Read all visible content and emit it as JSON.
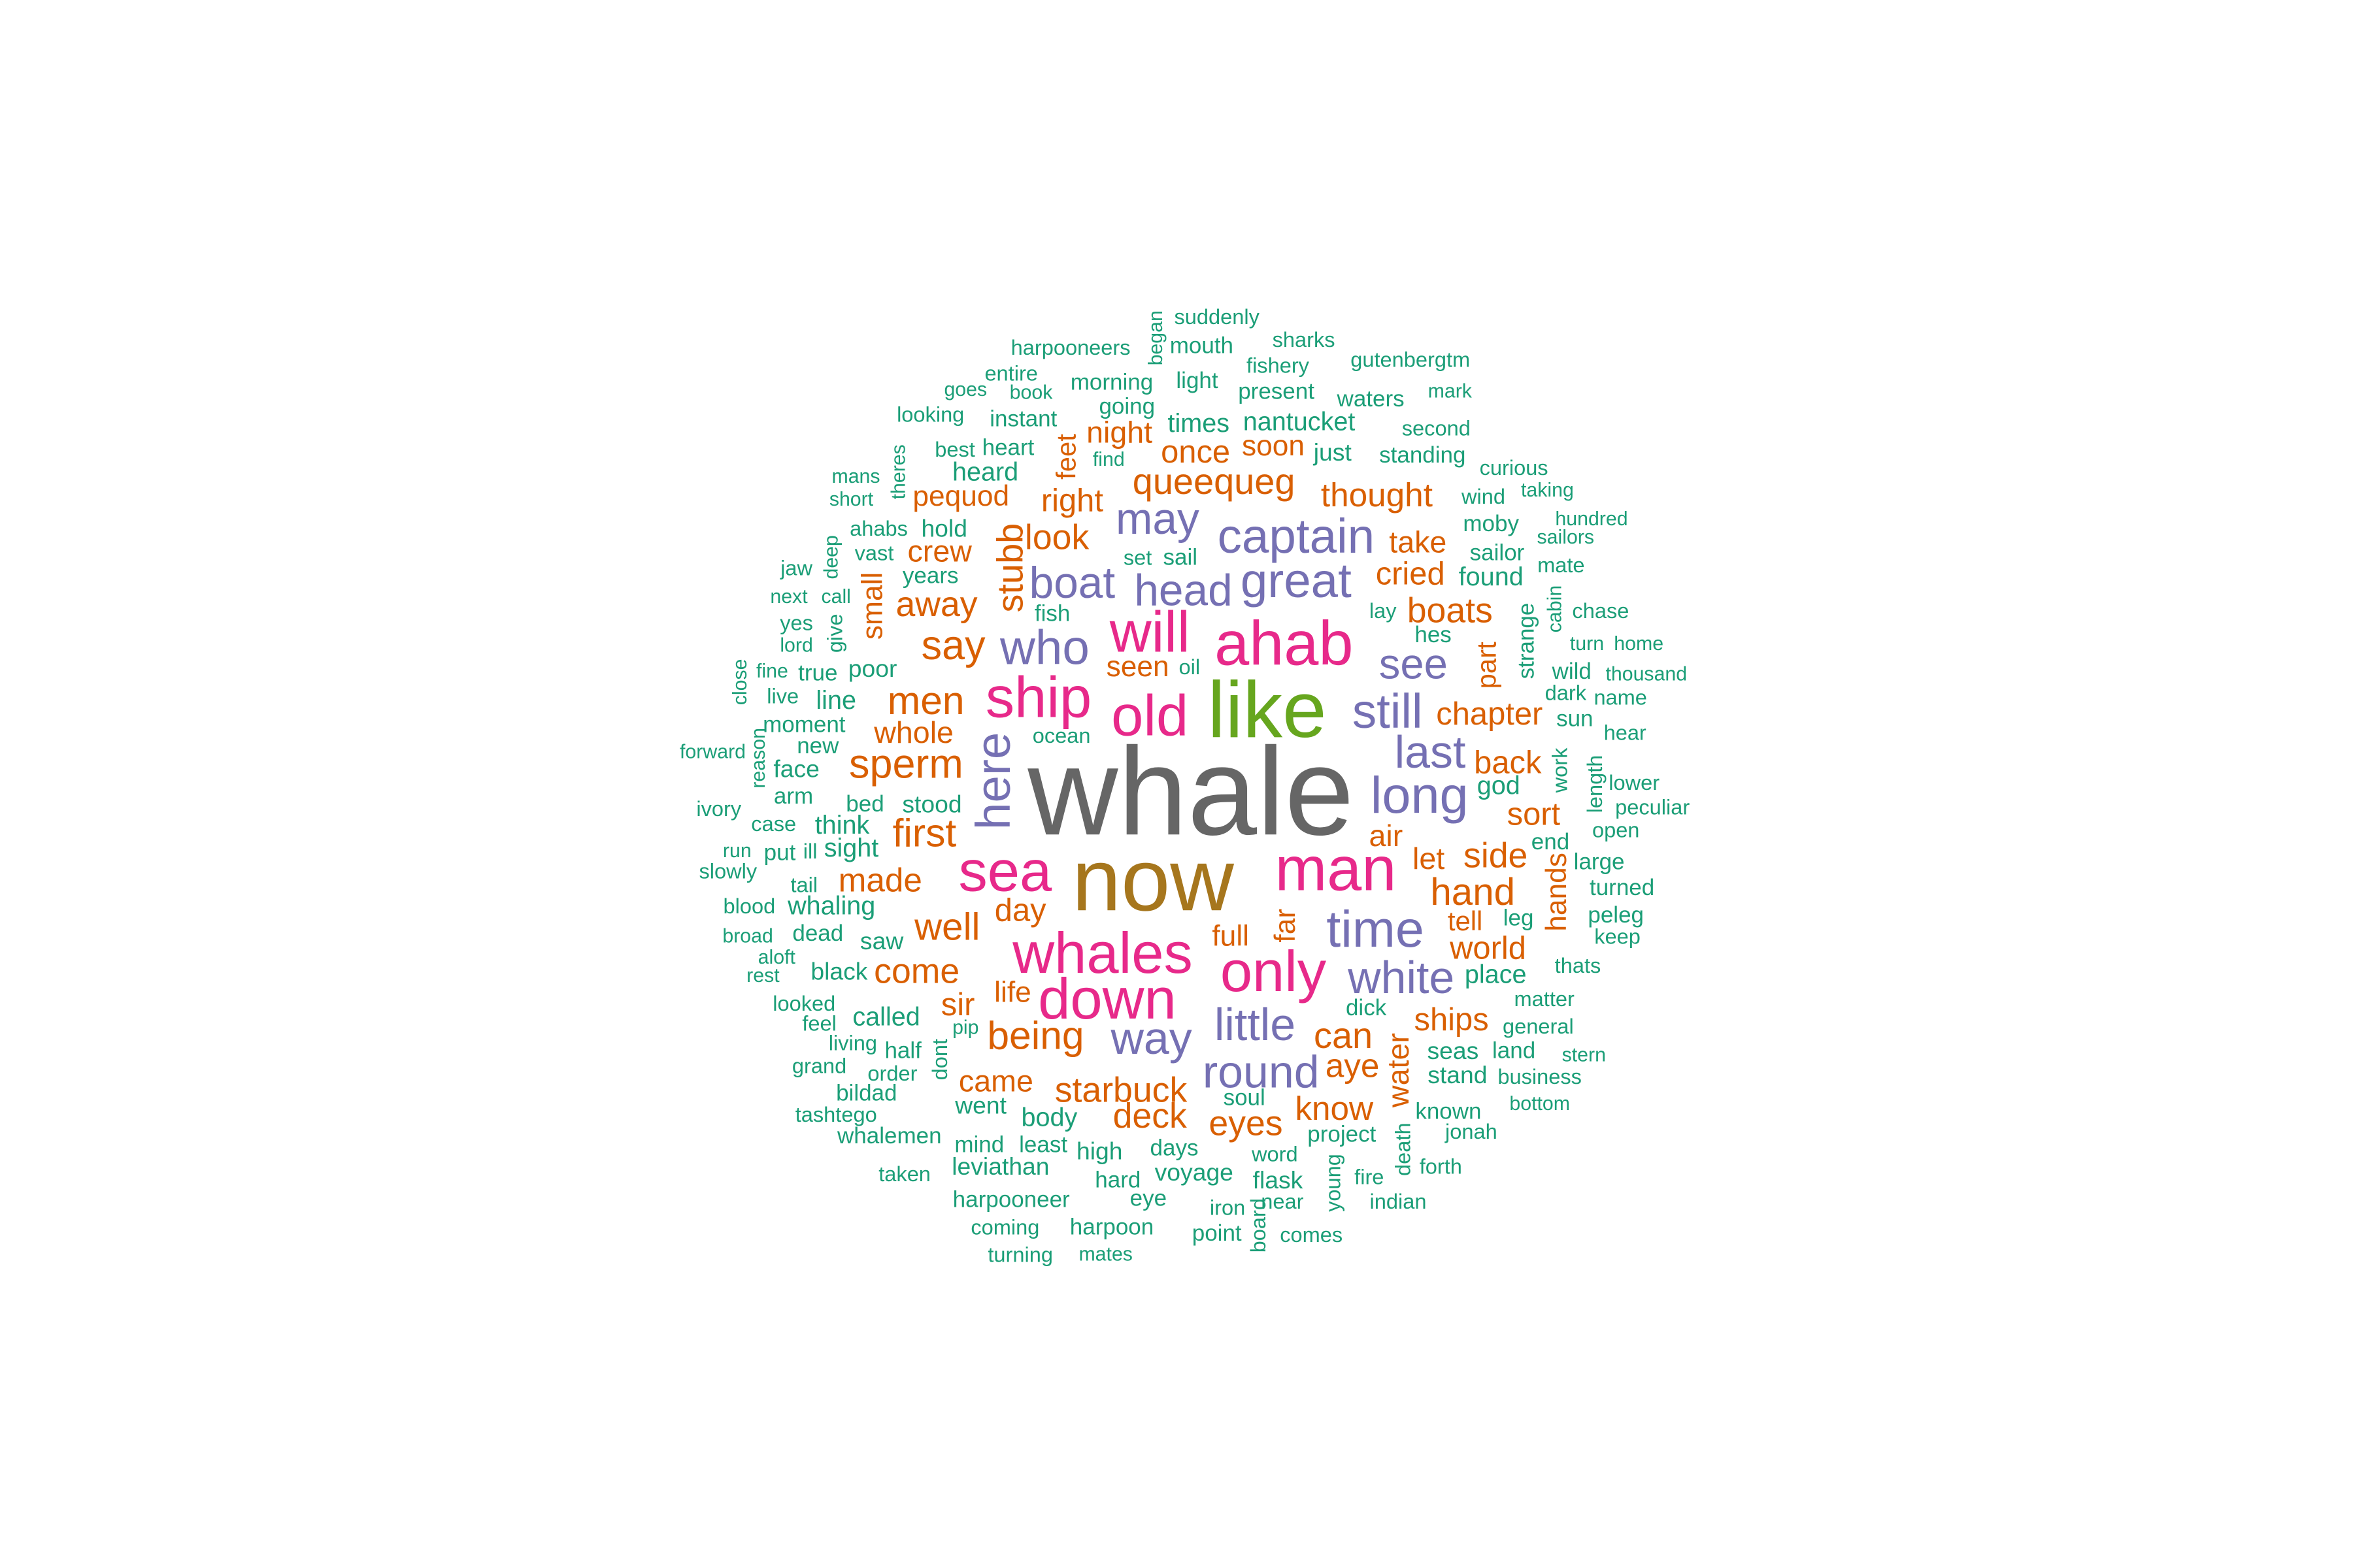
{
  "chart_data": {
    "type": "wordcloud",
    "title": "",
    "colors": {
      "t1": "#1b9e77",
      "t2": "#d95f02",
      "t3": "#7570b3",
      "t4": "#e7298a",
      "t5": "#66a61e",
      "t6": "#a6761d",
      "t7": "#666666"
    },
    "words": [
      {
        "text": "whale",
        "tier": 7
      },
      {
        "text": "now",
        "tier": 6
      },
      {
        "text": "like",
        "tier": 5
      },
      {
        "text": "ahab",
        "tier": 4
      },
      {
        "text": "man",
        "tier": 4
      },
      {
        "text": "ship",
        "tier": 4
      },
      {
        "text": "will",
        "tier": 4
      },
      {
        "text": "old",
        "tier": 4
      },
      {
        "text": "sea",
        "tier": 4
      },
      {
        "text": "whales",
        "tier": 4
      },
      {
        "text": "only",
        "tier": 4
      },
      {
        "text": "down",
        "tier": 4
      },
      {
        "text": "who",
        "tier": 3
      },
      {
        "text": "captain",
        "tier": 3
      },
      {
        "text": "great",
        "tier": 3
      },
      {
        "text": "head",
        "tier": 3
      },
      {
        "text": "boat",
        "tier": 3
      },
      {
        "text": "may",
        "tier": 3
      },
      {
        "text": "see",
        "tier": 3
      },
      {
        "text": "still",
        "tier": 3
      },
      {
        "text": "last",
        "tier": 3
      },
      {
        "text": "long",
        "tier": 3
      },
      {
        "text": "time",
        "tier": 3
      },
      {
        "text": "white",
        "tier": 3
      },
      {
        "text": "little",
        "tier": 3
      },
      {
        "text": "round",
        "tier": 3
      },
      {
        "text": "way",
        "tier": 3
      },
      {
        "text": "here",
        "tier": 3
      },
      {
        "text": "queequeg",
        "tier": 2
      },
      {
        "text": "stubb",
        "tier": 2
      },
      {
        "text": "sperm",
        "tier": 2
      },
      {
        "text": "men",
        "tier": 2
      },
      {
        "text": "say",
        "tier": 2
      },
      {
        "text": "first",
        "tier": 2
      },
      {
        "text": "well",
        "tier": 2
      },
      {
        "text": "made",
        "tier": 2
      },
      {
        "text": "come",
        "tier": 2
      },
      {
        "text": "being",
        "tier": 2
      },
      {
        "text": "starbuck",
        "tier": 2
      },
      {
        "text": "deck",
        "tier": 2
      },
      {
        "text": "eyes",
        "tier": 2
      },
      {
        "text": "know",
        "tier": 2
      },
      {
        "text": "can",
        "tier": 2
      },
      {
        "text": "aye",
        "tier": 2
      },
      {
        "text": "water",
        "tier": 2
      },
      {
        "text": "ships",
        "tier": 2
      },
      {
        "text": "world",
        "tier": 2
      },
      {
        "text": "tell",
        "tier": 2
      },
      {
        "text": "hand",
        "tier": 2
      },
      {
        "text": "side",
        "tier": 2
      },
      {
        "text": "sort",
        "tier": 2
      },
      {
        "text": "back",
        "tier": 2
      },
      {
        "text": "chapter",
        "tier": 2
      },
      {
        "text": "part",
        "tier": 2
      },
      {
        "text": "boats",
        "tier": 2
      },
      {
        "text": "cried",
        "tier": 2
      },
      {
        "text": "take",
        "tier": 2
      },
      {
        "text": "thought",
        "tier": 2
      },
      {
        "text": "soon",
        "tier": 2
      },
      {
        "text": "once",
        "tier": 2
      },
      {
        "text": "night",
        "tier": 2
      },
      {
        "text": "right",
        "tier": 2
      },
      {
        "text": "look",
        "tier": 2
      },
      {
        "text": "pequod",
        "tier": 2
      },
      {
        "text": "crew",
        "tier": 2
      },
      {
        "text": "away",
        "tier": 2
      },
      {
        "text": "small",
        "tier": 2
      },
      {
        "text": "whole",
        "tier": 2
      },
      {
        "text": "seen",
        "tier": 2
      },
      {
        "text": "day",
        "tier": 2
      },
      {
        "text": "life",
        "tier": 2
      },
      {
        "text": "sir",
        "tier": 2
      },
      {
        "text": "came",
        "tier": 2
      },
      {
        "text": "full",
        "tier": 2
      },
      {
        "text": "far",
        "tier": 2
      },
      {
        "text": "air",
        "tier": 2
      },
      {
        "text": "let",
        "tier": 2
      },
      {
        "text": "hands",
        "tier": 2
      },
      {
        "text": "feet",
        "tier": 2
      },
      {
        "text": "ocean",
        "tier": 1
      },
      {
        "text": "fish",
        "tier": 1
      },
      {
        "text": "oil",
        "tier": 1
      },
      {
        "text": "lay",
        "tier": 1
      },
      {
        "text": "hes",
        "tier": 1
      },
      {
        "text": "sail",
        "tier": 1
      },
      {
        "text": "set",
        "tier": 1
      },
      {
        "text": "years",
        "tier": 1
      },
      {
        "text": "hold",
        "tier": 1
      },
      {
        "text": "ahabs",
        "tier": 1
      },
      {
        "text": "heard",
        "tier": 1
      },
      {
        "text": "heart",
        "tier": 1
      },
      {
        "text": "best",
        "tier": 1
      },
      {
        "text": "find",
        "tier": 1
      },
      {
        "text": "instant",
        "tier": 1
      },
      {
        "text": "going",
        "tier": 1
      },
      {
        "text": "times",
        "tier": 1
      },
      {
        "text": "nantucket",
        "tier": 1
      },
      {
        "text": "just",
        "tier": 1
      },
      {
        "text": "standing",
        "tier": 1
      },
      {
        "text": "moby",
        "tier": 1
      },
      {
        "text": "sailor",
        "tier": 1
      },
      {
        "text": "found",
        "tier": 1
      },
      {
        "text": "strange",
        "tier": 1
      },
      {
        "text": "wild",
        "tier": 1
      },
      {
        "text": "sun",
        "tier": 1
      },
      {
        "text": "god",
        "tier": 1
      },
      {
        "text": "work",
        "tier": 1
      },
      {
        "text": "end",
        "tier": 1
      },
      {
        "text": "leg",
        "tier": 1
      },
      {
        "text": "place",
        "tier": 1
      },
      {
        "text": "matter",
        "tier": 1
      },
      {
        "text": "land",
        "tier": 1
      },
      {
        "text": "seas",
        "tier": 1
      },
      {
        "text": "stand",
        "tier": 1
      },
      {
        "text": "business",
        "tier": 1
      },
      {
        "text": "known",
        "tier": 1
      },
      {
        "text": "jonah",
        "tier": 1
      },
      {
        "text": "general",
        "tier": 1
      },
      {
        "text": "dick",
        "tier": 1
      },
      {
        "text": "project",
        "tier": 1
      },
      {
        "text": "soul",
        "tier": 1
      },
      {
        "text": "days",
        "tier": 1
      },
      {
        "text": "voyage",
        "tier": 1
      },
      {
        "text": "flask",
        "tier": 1
      },
      {
        "text": "word",
        "tier": 1
      },
      {
        "text": "body",
        "tier": 1
      },
      {
        "text": "mind",
        "tier": 1
      },
      {
        "text": "least",
        "tier": 1
      },
      {
        "text": "high",
        "tier": 1
      },
      {
        "text": "went",
        "tier": 1
      },
      {
        "text": "leviathan",
        "tier": 1
      },
      {
        "text": "hard",
        "tier": 1
      },
      {
        "text": "eye",
        "tier": 1
      },
      {
        "text": "harpooneer",
        "tier": 1
      },
      {
        "text": "harpoon",
        "tier": 1
      },
      {
        "text": "coming",
        "tier": 1
      },
      {
        "text": "turning",
        "tier": 1
      },
      {
        "text": "mates",
        "tier": 1
      },
      {
        "text": "point",
        "tier": 1
      },
      {
        "text": "iron",
        "tier": 1
      },
      {
        "text": "near",
        "tier": 1
      },
      {
        "text": "comes",
        "tier": 1
      },
      {
        "text": "board",
        "tier": 1
      },
      {
        "text": "young",
        "tier": 1
      },
      {
        "text": "death",
        "tier": 1
      },
      {
        "text": "fire",
        "tier": 1
      },
      {
        "text": "indian",
        "tier": 1
      },
      {
        "text": "forth",
        "tier": 1
      },
      {
        "text": "bottom",
        "tier": 1
      },
      {
        "text": "stern",
        "tier": 1
      },
      {
        "text": "thats",
        "tier": 1
      },
      {
        "text": "keep",
        "tier": 1
      },
      {
        "text": "peleg",
        "tier": 1
      },
      {
        "text": "turned",
        "tier": 1
      },
      {
        "text": "large",
        "tier": 1
      },
      {
        "text": "open",
        "tier": 1
      },
      {
        "text": "peculiar",
        "tier": 1
      },
      {
        "text": "lower",
        "tier": 1
      },
      {
        "text": "length",
        "tier": 1
      },
      {
        "text": "hear",
        "tier": 1
      },
      {
        "text": "name",
        "tier": 1
      },
      {
        "text": "dark",
        "tier": 1
      },
      {
        "text": "thousand",
        "tier": 1
      },
      {
        "text": "turn",
        "tier": 1
      },
      {
        "text": "home",
        "tier": 1
      },
      {
        "text": "chase",
        "tier": 1
      },
      {
        "text": "cabin",
        "tier": 1
      },
      {
        "text": "mate",
        "tier": 1
      },
      {
        "text": "sailors",
        "tier": 1
      },
      {
        "text": "hundred",
        "tier": 1
      },
      {
        "text": "taking",
        "tier": 1
      },
      {
        "text": "curious",
        "tier": 1
      },
      {
        "text": "wind",
        "tier": 1
      },
      {
        "text": "second",
        "tier": 1
      },
      {
        "text": "mark",
        "tier": 1
      },
      {
        "text": "gutenbergtm",
        "tier": 1
      },
      {
        "text": "waters",
        "tier": 1
      },
      {
        "text": "sharks",
        "tier": 1
      },
      {
        "text": "fishery",
        "tier": 1
      },
      {
        "text": "present",
        "tier": 1
      },
      {
        "text": "suddenly",
        "tier": 1
      },
      {
        "text": "mouth",
        "tier": 1
      },
      {
        "text": "light",
        "tier": 1
      },
      {
        "text": "morning",
        "tier": 1
      },
      {
        "text": "began",
        "tier": 1
      },
      {
        "text": "harpooneers",
        "tier": 1
      },
      {
        "text": "entire",
        "tier": 1
      },
      {
        "text": "book",
        "tier": 1
      },
      {
        "text": "goes",
        "tier": 1
      },
      {
        "text": "looking",
        "tier": 1
      },
      {
        "text": "theres",
        "tier": 1
      },
      {
        "text": "mans",
        "tier": 1
      },
      {
        "text": "short",
        "tier": 1
      },
      {
        "text": "vast",
        "tier": 1
      },
      {
        "text": "deep",
        "tier": 1
      },
      {
        "text": "jaw",
        "tier": 1
      },
      {
        "text": "next",
        "tier": 1
      },
      {
        "text": "call",
        "tier": 1
      },
      {
        "text": "yes",
        "tier": 1
      },
      {
        "text": "give",
        "tier": 1
      },
      {
        "text": "lord",
        "tier": 1
      },
      {
        "text": "close",
        "tier": 1
      },
      {
        "text": "fine",
        "tier": 1
      },
      {
        "text": "true",
        "tier": 1
      },
      {
        "text": "poor",
        "tier": 1
      },
      {
        "text": "live",
        "tier": 1
      },
      {
        "text": "line",
        "tier": 1
      },
      {
        "text": "moment",
        "tier": 1
      },
      {
        "text": "new",
        "tier": 1
      },
      {
        "text": "forward",
        "tier": 1
      },
      {
        "text": "reason",
        "tier": 1
      },
      {
        "text": "face",
        "tier": 1
      },
      {
        "text": "arm",
        "tier": 1
      },
      {
        "text": "ivory",
        "tier": 1
      },
      {
        "text": "case",
        "tier": 1
      },
      {
        "text": "think",
        "tier": 1
      },
      {
        "text": "bed",
        "tier": 1
      },
      {
        "text": "stood",
        "tier": 1
      },
      {
        "text": "run",
        "tier": 1
      },
      {
        "text": "put",
        "tier": 1
      },
      {
        "text": "ill",
        "tier": 1
      },
      {
        "text": "sight",
        "tier": 1
      },
      {
        "text": "slowly",
        "tier": 1
      },
      {
        "text": "tail",
        "tier": 1
      },
      {
        "text": "whaling",
        "tier": 1
      },
      {
        "text": "blood",
        "tier": 1
      },
      {
        "text": "broad",
        "tier": 1
      },
      {
        "text": "dead",
        "tier": 1
      },
      {
        "text": "saw",
        "tier": 1
      },
      {
        "text": "aloft",
        "tier": 1
      },
      {
        "text": "rest",
        "tier": 1
      },
      {
        "text": "black",
        "tier": 1
      },
      {
        "text": "looked",
        "tier": 1
      },
      {
        "text": "called",
        "tier": 1
      },
      {
        "text": "feel",
        "tier": 1
      },
      {
        "text": "pip",
        "tier": 1
      },
      {
        "text": "living",
        "tier": 1
      },
      {
        "text": "half",
        "tier": 1
      },
      {
        "text": "dont",
        "tier": 1
      },
      {
        "text": "grand",
        "tier": 1
      },
      {
        "text": "order",
        "tier": 1
      },
      {
        "text": "bildad",
        "tier": 1
      },
      {
        "text": "tashtego",
        "tier": 1
      },
      {
        "text": "whalemen",
        "tier": 1
      },
      {
        "text": "taken",
        "tier": 1
      }
    ]
  }
}
